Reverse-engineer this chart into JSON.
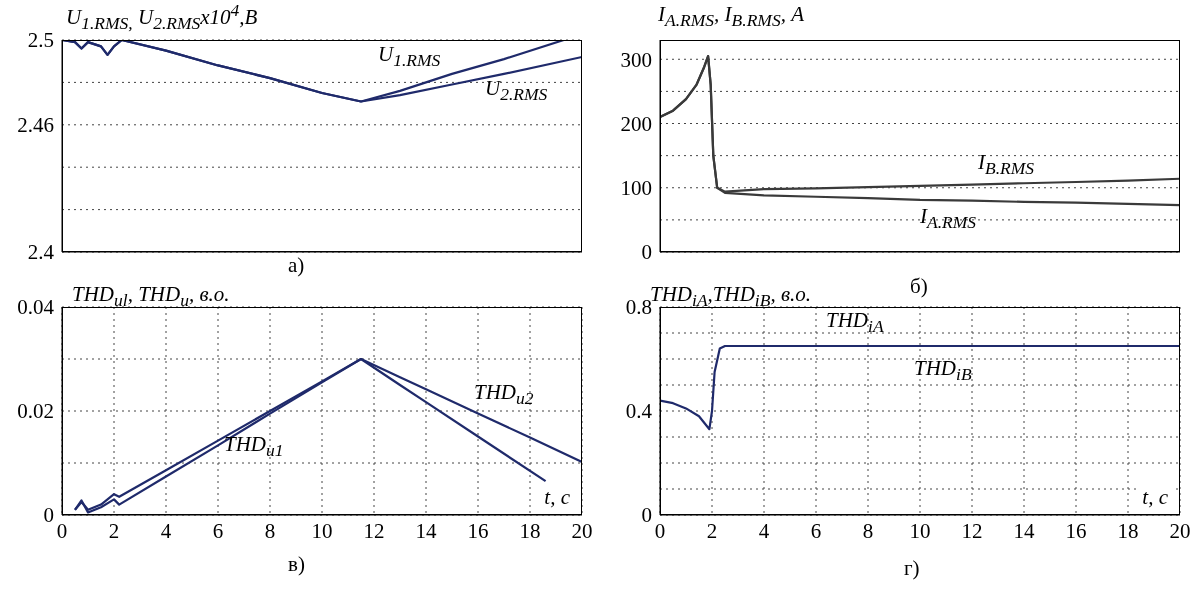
{
  "chart_data": [
    {
      "type": "line",
      "ylabel": "U$_{1.RMS,}$ U$_{2.RMS}$x10$^{4}$,В",
      "annotations": [
        "а)"
      ],
      "xlim": [
        0,
        20
      ],
      "xticks": [
        0,
        2,
        4,
        6,
        8,
        10,
        12,
        14,
        16,
        18,
        20
      ],
      "ylim": [
        2.4,
        2.5
      ],
      "yticks": [
        2.4,
        {
          "value": 2.42,
          "label": null
        },
        {
          "value": 2.44,
          "label": null
        },
        2.46,
        {
          "value": 2.48,
          "label": null
        },
        2.5
      ],
      "tick_labels": "y",
      "grid": true,
      "marker": "none",
      "line_style": "solid",
      "series": [
        {
          "name": "U$_{1.RMS}$",
          "color": "#1f2a6b",
          "x": [
            0,
            0.5,
            0.75,
            1.0,
            1.5,
            1.75,
            2.0,
            2.3,
            4,
            6,
            8,
            10,
            11.5,
            13,
            15,
            17,
            19.3
          ],
          "values": [
            2.5,
            2.499,
            2.496,
            2.499,
            2.497,
            2.493,
            2.497,
            2.5,
            2.495,
            2.488,
            2.482,
            2.475,
            2.471,
            2.476,
            2.484,
            2.491,
            2.5
          ]
        },
        {
          "name": "U$_{2.RMS}$",
          "color": "#1f2a6b",
          "x": [
            0,
            0.5,
            0.75,
            1.0,
            1.5,
            1.75,
            2.0,
            2.3,
            4,
            6,
            8,
            10,
            11.5,
            13,
            15,
            17,
            20
          ],
          "values": [
            2.5,
            2.499,
            2.496,
            2.499,
            2.497,
            2.493,
            2.497,
            2.5,
            2.495,
            2.488,
            2.482,
            2.475,
            2.471,
            2.474,
            2.479,
            2.484,
            2.492
          ]
        }
      ]
    },
    {
      "type": "line",
      "ylabel": "I$_{A.RMS}$,  I$_{B.RMS}$,  А",
      "annotations": [
        "б)"
      ],
      "xlim": [
        0,
        20
      ],
      "xticks": [
        0,
        2,
        4,
        6,
        8,
        10,
        12,
        14,
        16,
        18,
        20
      ],
      "ylim": [
        0,
        330
      ],
      "yticks": [
        0,
        {
          "value": 50,
          "label": null
        },
        100,
        {
          "value": 150,
          "label": null
        },
        200,
        {
          "value": 250,
          "label": null
        },
        300
      ],
      "tick_labels": "y",
      "grid": true,
      "marker": "none",
      "line_style": "solid",
      "series": [
        {
          "name": "I$_{B.RMS}$",
          "color": "#3a3a3a",
          "x": [
            0,
            0.5,
            1,
            1.4,
            1.7,
            1.85,
            1.95,
            2.05,
            2.2,
            2.5,
            4,
            6,
            8,
            10,
            12,
            14,
            16,
            18,
            20
          ],
          "values": [
            210,
            220,
            238,
            260,
            288,
            305,
            260,
            150,
            100,
            94,
            98,
            99,
            101,
            103,
            105,
            107,
            109,
            111,
            114
          ]
        },
        {
          "name": "I$_{A.RMS}$",
          "color": "#3a3a3a",
          "x": [
            0,
            0.5,
            1,
            1.4,
            1.7,
            1.85,
            1.95,
            2.05,
            2.2,
            2.5,
            4,
            6,
            8,
            10,
            12,
            14,
            16,
            18,
            20
          ],
          "values": [
            210,
            220,
            238,
            260,
            288,
            305,
            260,
            150,
            100,
            92,
            88,
            86,
            84,
            81,
            80,
            78,
            77,
            75,
            73
          ]
        }
      ]
    },
    {
      "type": "line",
      "ylabel": "THD$_{ul}$, THD$_{u}$, в.о.",
      "xlabel": "t, с",
      "annotations": [
        "в)"
      ],
      "xlim": [
        0,
        20
      ],
      "xticks": [
        0,
        2,
        4,
        6,
        8,
        10,
        12,
        14,
        16,
        18,
        20
      ],
      "ylim": [
        0,
        0.04
      ],
      "yticks": [
        0,
        {
          "value": 0.01,
          "label": null
        },
        0.02,
        {
          "value": 0.03,
          "label": null
        },
        0.04
      ],
      "grid": true,
      "marker": "none",
      "line_style": "solid",
      "series": [
        {
          "name": "THD$_{u2}$",
          "color": "#1f2a6b",
          "x": [
            0.5,
            0.75,
            1.0,
            1.5,
            2.0,
            2.2,
            4,
            6,
            8,
            10,
            11.5,
            13,
            14,
            16,
            18,
            20
          ],
          "values": [
            0.001,
            0.0025,
            0.001,
            0.002,
            0.004,
            0.0035,
            0.0086,
            0.0143,
            0.02,
            0.0257,
            0.03,
            0.0265,
            0.0242,
            0.0195,
            0.0149,
            0.0102
          ]
        },
        {
          "name": "THD$_{u1}$",
          "color": "#1f2a6b",
          "x": [
            0.5,
            0.75,
            1.0,
            1.5,
            2.0,
            2.2,
            4,
            6,
            8,
            10,
            11.5,
            13,
            14,
            16,
            18.6
          ],
          "values": [
            0.001,
            0.0028,
            0.0005,
            0.0015,
            0.003,
            0.002,
            0.0074,
            0.0134,
            0.0195,
            0.0255,
            0.03,
            0.025,
            0.0217,
            0.0151,
            0.0065
          ]
        }
      ]
    },
    {
      "type": "line",
      "ylabel": "THD$_{iA}$,THD$_{iB}$,  в.о.",
      "xlabel": "t, с",
      "annotations": [
        "г)",
        "THD$_{iA}$",
        "THD$_{iB}$"
      ],
      "xlim": [
        0,
        20
      ],
      "xticks": [
        0,
        2,
        4,
        6,
        8,
        10,
        12,
        14,
        16,
        18,
        20
      ],
      "ylim": [
        0,
        0.8
      ],
      "yticks": [
        0,
        {
          "value": 0.1,
          "label": null
        },
        {
          "value": 0.2,
          "label": null
        },
        {
          "value": 0.3,
          "label": null
        },
        0.4,
        {
          "value": 0.5,
          "label": null
        },
        {
          "value": 0.6,
          "label": null
        },
        {
          "value": 0.7,
          "label": null
        },
        0.8
      ],
      "grid": true,
      "marker": "none",
      "line_style": "solid",
      "series": [
        {
          "color": "#1f2a6b",
          "x": [
            0,
            0.5,
            1,
            1.5,
            1.9,
            2.0,
            2.1,
            2.3,
            2.5,
            4,
            8,
            12,
            16,
            20
          ],
          "values": [
            0.44,
            0.43,
            0.41,
            0.38,
            0.33,
            0.4,
            0.55,
            0.64,
            0.65,
            0.65,
            0.65,
            0.65,
            0.65,
            0.65
          ]
        }
      ]
    }
  ]
}
